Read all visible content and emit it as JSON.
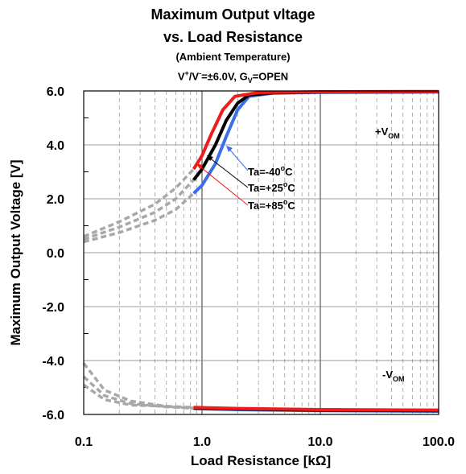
{
  "titles": {
    "line1": "Maximum Output vltage",
    "line2": "vs. Load Resistance",
    "line3": "(Ambient Temperature)",
    "cond_a": "V",
    "cond_b": "+",
    "cond_c": "/V",
    "cond_d": "-",
    "cond_e": "=±6.0V, G",
    "cond_f": "V",
    "cond_g": "=OPEN"
  },
  "chart_data": {
    "type": "line",
    "xscale": "log",
    "xlim": [
      0.1,
      100.0
    ],
    "ylim": [
      -6.0,
      6.0
    ],
    "xlabel": "Load Resistance [kΩ]",
    "ylabel": "Maximum Output Voltage [V]",
    "x_ticks": [
      "0.1",
      "1.0",
      "10.0",
      "100.0"
    ],
    "y_ticks": [
      "6.0",
      "4.0",
      "2.0",
      "0.0",
      "-2.0",
      "-4.0",
      "-6.0"
    ],
    "grid": true,
    "annotations": {
      "vom_pos_main": "+V",
      "vom_pos_sub": "OM",
      "vom_neg_main": "-V",
      "vom_neg_sub": "OM"
    },
    "series": [
      {
        "name": "Ta=-40°C",
        "label_main": "Ta=-40",
        "label_sup": "o",
        "label_end": "C",
        "color": "#3a6fe8",
        "positive": [
          [
            0.85,
            2.2
          ],
          [
            1.0,
            2.5
          ],
          [
            1.3,
            3.3
          ],
          [
            1.6,
            4.3
          ],
          [
            2.0,
            5.3
          ],
          [
            2.5,
            5.8
          ],
          [
            4.0,
            5.92
          ],
          [
            10.0,
            5.95
          ],
          [
            100.0,
            5.96
          ]
        ],
        "negative": [
          [
            0.85,
            -5.78
          ],
          [
            2.0,
            -5.82
          ],
          [
            10.0,
            -5.86
          ],
          [
            100.0,
            -5.88
          ]
        ],
        "positive_dashed": [
          [
            0.1,
            0.4
          ],
          [
            0.2,
            0.75
          ],
          [
            0.4,
            1.2
          ],
          [
            0.6,
            1.6
          ],
          [
            0.85,
            2.2
          ]
        ],
        "negative_dashed": [
          [
            0.1,
            -4.1
          ],
          [
            0.15,
            -5.1
          ],
          [
            0.25,
            -5.5
          ],
          [
            0.5,
            -5.7
          ],
          [
            0.85,
            -5.78
          ]
        ]
      },
      {
        "name": "Ta=+25°C",
        "label_main": "Ta=+25",
        "label_sup": "o",
        "label_end": "C",
        "color": "#000000",
        "positive": [
          [
            0.85,
            2.7
          ],
          [
            1.0,
            3.1
          ],
          [
            1.3,
            4.0
          ],
          [
            1.6,
            4.9
          ],
          [
            2.0,
            5.55
          ],
          [
            2.5,
            5.85
          ],
          [
            4.0,
            5.93
          ],
          [
            10.0,
            5.96
          ],
          [
            100.0,
            5.97
          ]
        ],
        "negative": [
          [
            0.85,
            -5.76
          ],
          [
            2.0,
            -5.8
          ],
          [
            10.0,
            -5.84
          ],
          [
            100.0,
            -5.86
          ]
        ],
        "positive_dashed": [
          [
            0.1,
            0.5
          ],
          [
            0.2,
            0.95
          ],
          [
            0.4,
            1.5
          ],
          [
            0.6,
            2.0
          ],
          [
            0.85,
            2.7
          ]
        ],
        "negative_dashed": [
          [
            0.1,
            -4.6
          ],
          [
            0.15,
            -5.3
          ],
          [
            0.25,
            -5.6
          ],
          [
            0.5,
            -5.72
          ],
          [
            0.85,
            -5.76
          ]
        ]
      },
      {
        "name": "Ta=+85°C",
        "label_main": "Ta=+85",
        "label_sup": "o",
        "label_end": "C",
        "color": "#ee1c1c",
        "positive": [
          [
            0.85,
            3.1
          ],
          [
            1.0,
            3.6
          ],
          [
            1.2,
            4.4
          ],
          [
            1.5,
            5.3
          ],
          [
            1.9,
            5.8
          ],
          [
            3.0,
            5.94
          ],
          [
            10.0,
            5.97
          ],
          [
            100.0,
            5.98
          ]
        ],
        "negative": [
          [
            0.85,
            -5.74
          ],
          [
            2.0,
            -5.78
          ],
          [
            10.0,
            -5.82
          ],
          [
            100.0,
            -5.84
          ]
        ],
        "positive_dashed": [
          [
            0.1,
            0.6
          ],
          [
            0.2,
            1.15
          ],
          [
            0.4,
            1.8
          ],
          [
            0.6,
            2.4
          ],
          [
            0.85,
            3.1
          ]
        ],
        "negative_dashed": [
          [
            0.1,
            -4.9
          ],
          [
            0.15,
            -5.45
          ],
          [
            0.25,
            -5.65
          ],
          [
            0.5,
            -5.7
          ],
          [
            0.85,
            -5.74
          ]
        ]
      }
    ]
  }
}
